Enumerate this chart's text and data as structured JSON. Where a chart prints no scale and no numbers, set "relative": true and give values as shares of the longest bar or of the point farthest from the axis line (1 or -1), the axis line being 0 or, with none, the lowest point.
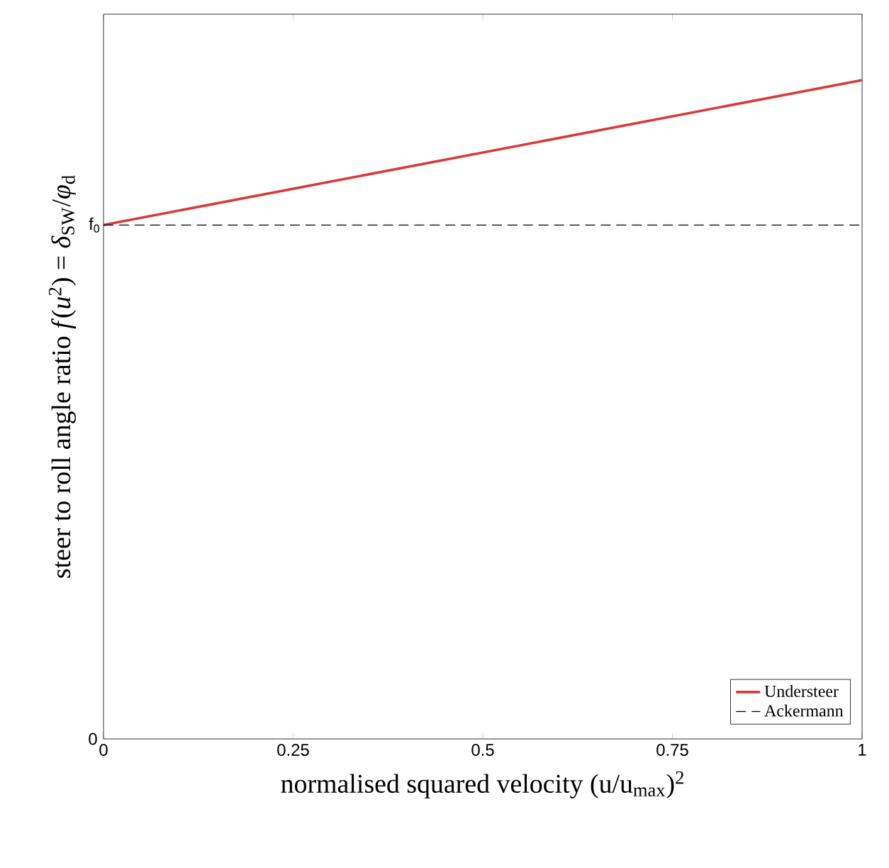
{
  "chart_data": {
    "type": "line",
    "xlabel": "normalised squared velocity (u/u$_{max}$)$^{2}$",
    "ylabel": "steer to roll angle ratio *f*(*u*$^{2}$) = *δ*$_{SW}$/*φ*$_{d}$",
    "xlim": [
      0,
      1
    ],
    "xticks": [
      0,
      0.25,
      0.5,
      0.75,
      1
    ],
    "relative": true,
    "annotations": [
      "0",
      {
        "text": "f$_{0}$",
        "x": 0,
        "y": 0.78
      }
    ],
    "x": [
      0,
      1
    ],
    "series": [
      {
        "name": "Understeer",
        "color": "#d93a3a",
        "values": [
          0.78,
          1
        ],
        "line_style": "solid"
      },
      {
        "name": "Ackermann",
        "color": "#000000",
        "values": [
          0.78,
          0.78
        ],
        "line_style": "dashed"
      }
    ],
    "legend": "bottom right",
    "grid": false,
    "marker": "none"
  }
}
